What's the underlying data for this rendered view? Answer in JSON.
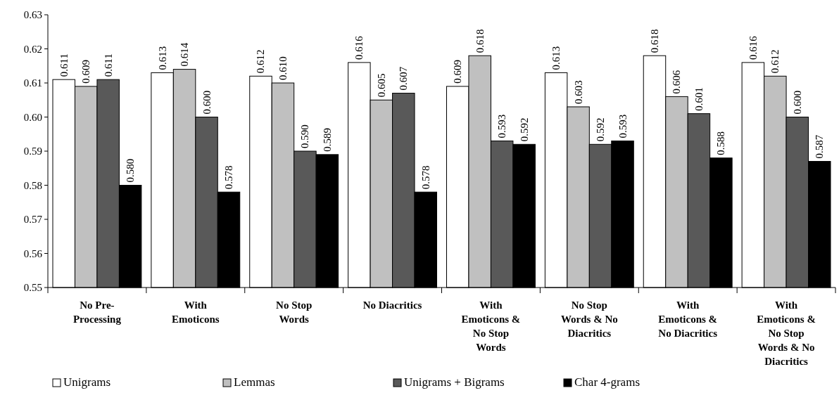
{
  "chart_data": {
    "type": "bar",
    "categories": [
      "No Pre-Processing",
      "With Emoticons",
      "No Stop Words",
      "No Diacritics",
      "With Emoticons & No Stop Words",
      "No Stop Words & No Diacritics",
      "With Emoticons & No Diacritics",
      "With Emoticons & No Stop Words & No Diacritics"
    ],
    "series": [
      {
        "name": "Unigrams",
        "color": "#ffffff",
        "values": [
          0.611,
          0.613,
          0.612,
          0.616,
          0.609,
          0.613,
          0.618,
          0.616
        ],
        "value_labels": [
          "0.611",
          "0.613",
          "0.612",
          "0.616",
          "0.609",
          "0.613",
          "0.618",
          "0.616"
        ]
      },
      {
        "name": "Lemmas",
        "color": "#c0c0c0",
        "values": [
          0.609,
          0.614,
          0.61,
          0.605,
          0.618,
          0.603,
          0.606,
          0.612
        ],
        "value_labels": [
          "0.609",
          "0.614",
          "0.610",
          "0.605",
          "0.618",
          "0.603",
          "0.606",
          "0.612"
        ]
      },
      {
        "name": "Unigrams + Bigrams",
        "color": "#595959",
        "values": [
          0.611,
          0.6,
          0.59,
          0.607,
          0.593,
          0.592,
          0.601,
          0.6
        ],
        "value_labels": [
          "0.611",
          "0.600",
          "0.590",
          "0.607",
          "0.593",
          "0.592",
          "0.601",
          "0.600"
        ]
      },
      {
        "name": "Char 4-grams",
        "color": "#000000",
        "values": [
          0.58,
          0.578,
          0.589,
          0.578,
          0.592,
          0.593,
          0.588,
          0.587
        ],
        "value_labels": [
          "0.580",
          "0.578",
          "0.589",
          "0.578",
          "0.592",
          "0.593",
          "0.588",
          "0.587"
        ]
      }
    ],
    "ylim": [
      0.55,
      0.63
    ],
    "yticks": [
      {
        "value": 0.55,
        "label": "0.55"
      },
      {
        "value": 0.56,
        "label": "0.56"
      },
      {
        "value": 0.57,
        "label": "0.57"
      },
      {
        "value": 0.58,
        "label": "0.58"
      },
      {
        "value": 0.59,
        "label": "0.59"
      },
      {
        "value": 0.6,
        "label": "0.60"
      },
      {
        "value": 0.61,
        "label": "0.61"
      },
      {
        "value": 0.62,
        "label": "0.62"
      },
      {
        "value": 0.63,
        "label": "0.63"
      }
    ],
    "legend": "bottom",
    "grid": false
  }
}
